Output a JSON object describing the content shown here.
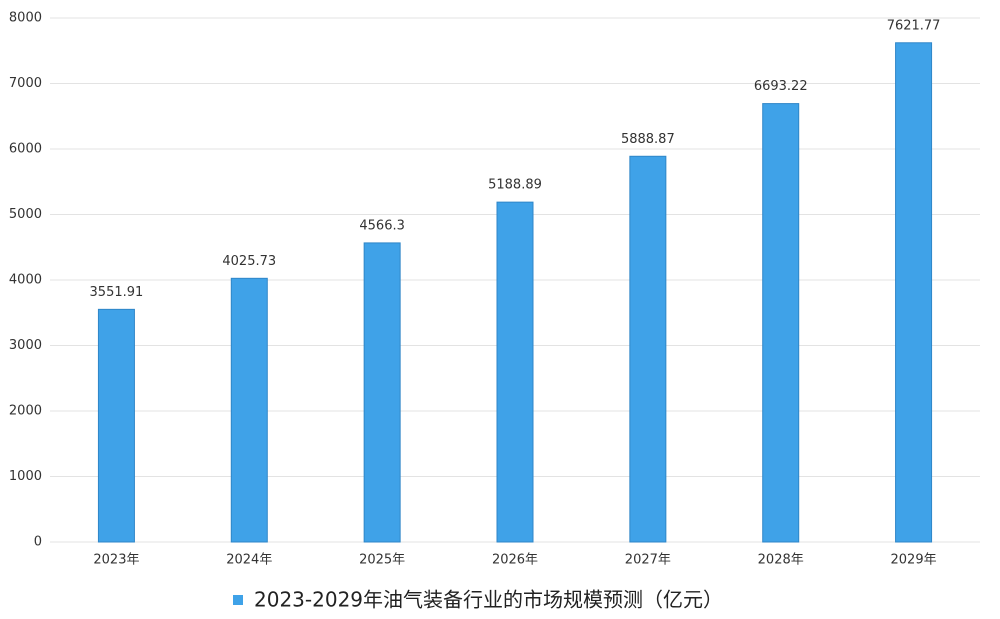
{
  "chart_data": {
    "type": "bar",
    "categories": [
      "2023年",
      "2024年",
      "2025年",
      "2026年",
      "2027年",
      "2028年",
      "2029年"
    ],
    "series": [
      {
        "name": "2023-2029年油气装备行业的市场规模预测（亿元）",
        "color": "#3fa2e8",
        "values": [
          3551.91,
          4025.73,
          4566.3,
          5188.89,
          5888.87,
          6693.22,
          7621.77
        ]
      }
    ],
    "ylim": [
      0,
      8000
    ],
    "yticks": [
      0,
      1000,
      2000,
      3000,
      4000,
      5000,
      6000,
      7000,
      8000
    ],
    "grid": true,
    "legend": "bottom"
  }
}
